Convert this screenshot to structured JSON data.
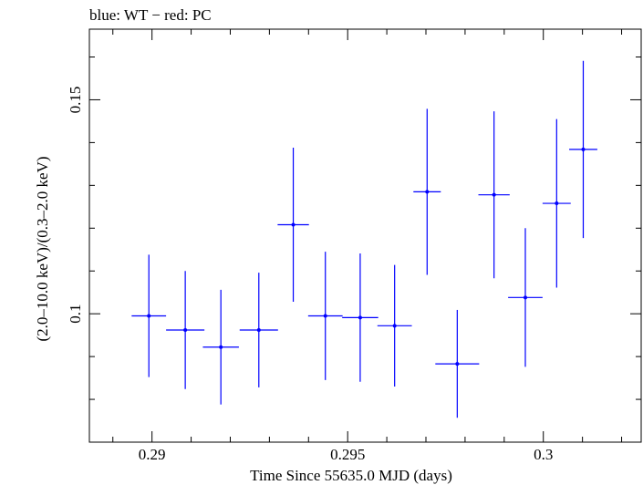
{
  "chart_data": {
    "type": "scatter",
    "title": "blue: WT − red: PC",
    "xlabel": "Time Since 55635.0 MJD (days)",
    "ylabel": "(2.0–10.0 keV)/(0.3–2.0 keV)",
    "xlim": [
      0.2884,
      0.3025
    ],
    "ylim": [
      0.07,
      0.1665
    ],
    "x_ticks": [
      {
        "value": 0.29,
        "label": "0.29"
      },
      {
        "value": 0.295,
        "label": "0.295"
      },
      {
        "value": 0.3,
        "label": "0.3"
      }
    ],
    "y_ticks": [
      {
        "value": 0.1,
        "label": "0.1"
      },
      {
        "value": 0.15,
        "label": "0.15"
      }
    ],
    "grid": false,
    "series": [
      {
        "name": "WT",
        "color": "#0000ff",
        "points": [
          {
            "x": 0.28992,
            "xerr": 0.00044,
            "y": 0.0995,
            "yerr": 0.0143
          },
          {
            "x": 0.29085,
            "xerr": 0.00049,
            "y": 0.0962,
            "yerr": 0.0138
          },
          {
            "x": 0.29176,
            "xerr": 0.00046,
            "y": 0.0922,
            "yerr": 0.0134
          },
          {
            "x": 0.29273,
            "xerr": 0.00049,
            "y": 0.0962,
            "yerr": 0.0134
          },
          {
            "x": 0.29361,
            "xerr": 0.0004,
            "y": 0.1208,
            "yerr": 0.018
          },
          {
            "x": 0.29443,
            "xerr": 0.00044,
            "y": 0.0995,
            "yerr": 0.015
          },
          {
            "x": 0.29532,
            "xerr": 0.00046,
            "y": 0.0991,
            "yerr": 0.015
          },
          {
            "x": 0.2962,
            "xerr": 0.00044,
            "y": 0.0972,
            "yerr": 0.0142
          },
          {
            "x": 0.29703,
            "xerr": 0.00035,
            "y": 0.1285,
            "yerr": 0.0194
          },
          {
            "x": 0.2978,
            "xerr": 0.00056,
            "y": 0.0883,
            "yerr": 0.0126
          },
          {
            "x": 0.29874,
            "xerr": 0.0004,
            "y": 0.1278,
            "yerr": 0.0195
          },
          {
            "x": 0.29954,
            "xerr": 0.00044,
            "y": 0.1038,
            "yerr": 0.0162
          },
          {
            "x": 0.30034,
            "xerr": 0.00036,
            "y": 0.1258,
            "yerr": 0.0197
          },
          {
            "x": 0.30102,
            "xerr": 0.00036,
            "y": 0.1384,
            "yerr": 0.0207
          }
        ]
      }
    ]
  }
}
